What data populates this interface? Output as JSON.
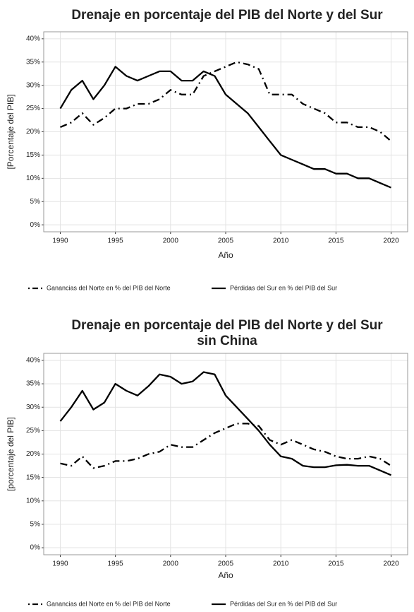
{
  "chart_data": [
    {
      "type": "line",
      "title": [
        "Drenaje en porcentaje del PIB del Norte y del Sur"
      ],
      "x_label": "Año",
      "y_label": "[Porcentaje del PIB]",
      "x": [
        1990,
        1991,
        1992,
        1993,
        1994,
        1995,
        1996,
        1997,
        1998,
        1999,
        2000,
        2001,
        2002,
        2003,
        2004,
        2005,
        2006,
        2007,
        2008,
        2009,
        2010,
        2011,
        2012,
        2013,
        2014,
        2015,
        2016,
        2017,
        2018,
        2019,
        2020
      ],
      "series": [
        {
          "name": "Ganancias del Norte en % del PIB del Norte",
          "color": "#000000",
          "line_style": "dashdot",
          "values": [
            21,
            22,
            24,
            21.5,
            23,
            25,
            25,
            26,
            26,
            27,
            29,
            28,
            28,
            32,
            33,
            34,
            35,
            34.5,
            33.5,
            28,
            28,
            28,
            26,
            25,
            24,
            22,
            22,
            21,
            21,
            20,
            18
          ]
        },
        {
          "name": "Pérdidas del Sur en % del PIB del Sur",
          "color": "#000000",
          "line_style": "solid",
          "values": [
            25,
            29,
            31,
            27,
            30,
            34,
            32,
            31,
            32,
            33,
            33,
            31,
            31,
            33,
            32,
            28,
            26,
            24,
            21,
            18,
            15,
            14,
            13,
            12,
            12,
            11,
            11,
            10,
            10,
            9,
            8
          ]
        }
      ],
      "xlim": [
        1988.5,
        2021.5
      ],
      "xticks": [
        1990,
        1995,
        2000,
        2005,
        2010,
        2015,
        2020
      ],
      "ylim": [
        -1.5,
        41.5
      ],
      "yticks": [
        {
          "value": 0,
          "label": "0%"
        },
        {
          "value": 5,
          "label": "5%"
        },
        {
          "value": 10,
          "label": "10%"
        },
        {
          "value": 15,
          "label": "15%"
        },
        {
          "value": 20,
          "label": "20%"
        },
        {
          "value": 25,
          "label": "25%"
        },
        {
          "value": 30,
          "label": "30%"
        },
        {
          "value": 35,
          "label": "35%"
        },
        {
          "value": 40,
          "label": "40%"
        }
      ],
      "grid": true,
      "legend": "bottom"
    },
    {
      "type": "line",
      "title": [
        "Drenaje en porcentaje del PIB del Norte y del Sur",
        "sin China"
      ],
      "x_label": "Año",
      "y_label": "[porcentaje del PIB]",
      "x": [
        1990,
        1991,
        1992,
        1993,
        1994,
        1995,
        1996,
        1997,
        1998,
        1999,
        2000,
        2001,
        2002,
        2003,
        2004,
        2005,
        2006,
        2007,
        2008,
        2009,
        2010,
        2011,
        2012,
        2013,
        2014,
        2015,
        2016,
        2017,
        2018,
        2019,
        2020
      ],
      "series": [
        {
          "name": "Ganancias del Norte en % del PIB del Norte",
          "color": "#000000",
          "line_style": "dashdot",
          "values": [
            18,
            17.5,
            19.5,
            17,
            17.5,
            18.5,
            18.5,
            19,
            20,
            20.5,
            22,
            21.5,
            21.5,
            23,
            24.5,
            25.5,
            26.5,
            26.5,
            26,
            23,
            22,
            23,
            22,
            21,
            20.5,
            19.5,
            19,
            19,
            19.5,
            19,
            17.5
          ]
        },
        {
          "name": "Pérdidas del Sur en % del PIB del Sur",
          "color": "#000000",
          "line_style": "solid",
          "values": [
            27,
            30,
            33.5,
            29.5,
            31,
            35,
            33.5,
            32.5,
            34.5,
            37,
            36.5,
            35,
            35.5,
            37.5,
            37,
            32.5,
            30,
            27.5,
            25,
            22,
            19.5,
            19,
            17.5,
            17.2,
            17.2,
            17.6,
            17.7,
            17.5,
            17.5,
            16.5,
            15.5
          ]
        }
      ],
      "xlim": [
        1988.5,
        2021.5
      ],
      "xticks": [
        1990,
        1995,
        2000,
        2005,
        2010,
        2015,
        2020
      ],
      "ylim": [
        -1.5,
        41.5
      ],
      "yticks": [
        {
          "value": 0,
          "label": "0%"
        },
        {
          "value": 5,
          "label": "5%"
        },
        {
          "value": 10,
          "label": "10%"
        },
        {
          "value": 15,
          "label": "15%"
        },
        {
          "value": 20,
          "label": "20%"
        },
        {
          "value": 25,
          "label": "25%"
        },
        {
          "value": 30,
          "label": "30%"
        },
        {
          "value": 35,
          "label": "35%"
        },
        {
          "value": 40,
          "label": "40%"
        }
      ],
      "grid": true,
      "legend": "bottom"
    }
  ]
}
